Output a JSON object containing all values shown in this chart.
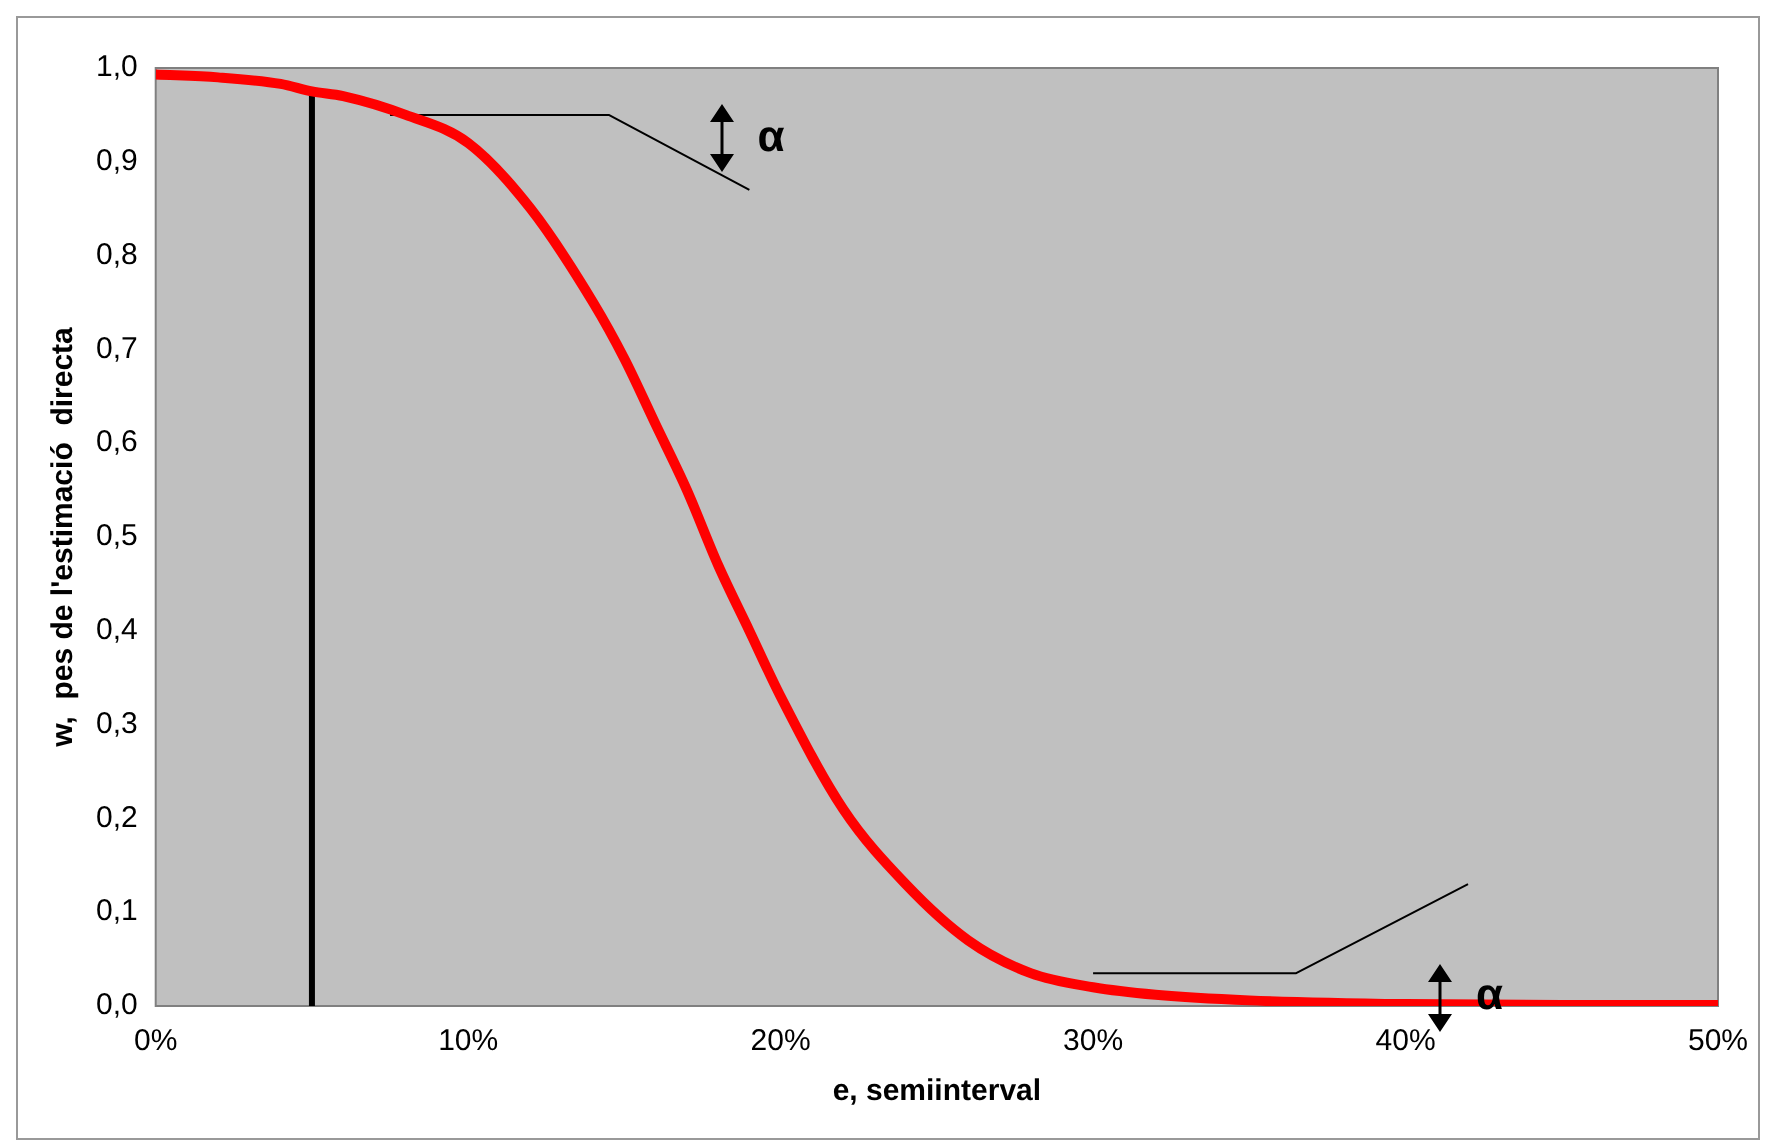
{
  "chart_data": {
    "type": "line",
    "xlabel": "e, semiinterval",
    "ylabel": "w,  pes de l'estimació  directa",
    "xlim": [
      0,
      50
    ],
    "ylim": [
      0,
      1
    ],
    "xticks": [
      {
        "value": 0,
        "label": "0%"
      },
      {
        "value": 10,
        "label": "10%"
      },
      {
        "value": 20,
        "label": "20%"
      },
      {
        "value": 30,
        "label": "30%"
      },
      {
        "value": 40,
        "label": "40%"
      },
      {
        "value": 50,
        "label": "50%"
      }
    ],
    "yticks": [
      {
        "value": 0,
        "label": "0,0"
      },
      {
        "value": 0.1,
        "label": "0,1"
      },
      {
        "value": 0.2,
        "label": "0,2"
      },
      {
        "value": 0.3,
        "label": "0,3"
      },
      {
        "value": 0.4,
        "label": "0,4"
      },
      {
        "value": 0.5,
        "label": "0,5"
      },
      {
        "value": 0.6,
        "label": "0,6"
      },
      {
        "value": 0.7,
        "label": "0,7"
      },
      {
        "value": 0.8,
        "label": "0,8"
      },
      {
        "value": 0.9,
        "label": "0,9"
      },
      {
        "value": 1,
        "label": "1,0"
      }
    ],
    "grid": false,
    "legend": false,
    "marker": "none",
    "series": [
      {
        "color": "#ff0000",
        "x": [
          0,
          2,
          4,
          5,
          6,
          8,
          10,
          12,
          14,
          15,
          16,
          17,
          18,
          19,
          20,
          22,
          24,
          26,
          28,
          30,
          32,
          35,
          40,
          45,
          50
        ],
        "values": [
          0.993,
          0.99,
          0.983,
          0.975,
          0.97,
          0.95,
          0.92,
          0.85,
          0.75,
          0.69,
          0.62,
          0.55,
          0.47,
          0.4,
          0.33,
          0.21,
          0.13,
          0.07,
          0.035,
          0.02,
          0.012,
          0.006,
          0.002,
          0.001,
          0.001
        ]
      },
      {
        "color": "#000000",
        "x": [
          5,
          5
        ],
        "values": [
          0,
          0.975
        ]
      },
      {
        "color": "#000000",
        "x": [
          7.5,
          14.5,
          19
        ],
        "values": [
          0.95,
          0.95,
          0.87
        ]
      },
      {
        "color": "#000000",
        "x": [
          30,
          36.5,
          42
        ],
        "values": [
          0.035,
          0.035,
          0.13
        ]
      }
    ],
    "annotations": [
      "α",
      "α"
    ]
  }
}
